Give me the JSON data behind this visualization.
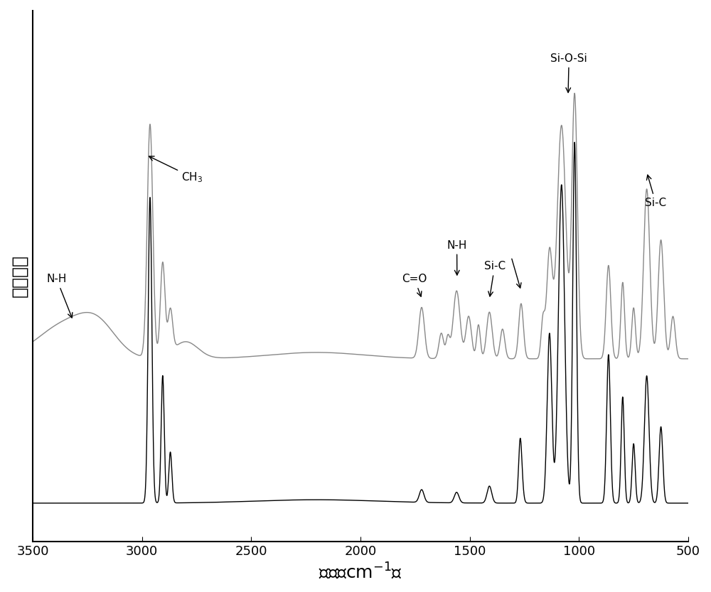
{
  "title": "",
  "xlabel": "波长（cm-1）",
  "ylabel": "吸收强度",
  "xlim": [
    3500,
    500
  ],
  "xticks": [
    3500,
    3000,
    2500,
    2000,
    1500,
    1000,
    500
  ],
  "xtick_labels": [
    "3500",
    "3000",
    "2500",
    "2000",
    "1500",
    "1000",
    "500"
  ],
  "gray_color": "#888888",
  "black_color": "#000000",
  "gray_baseline": 0.38,
  "black_baseline": 0.05,
  "gray_scale": 1.0,
  "black_scale": 1.0
}
